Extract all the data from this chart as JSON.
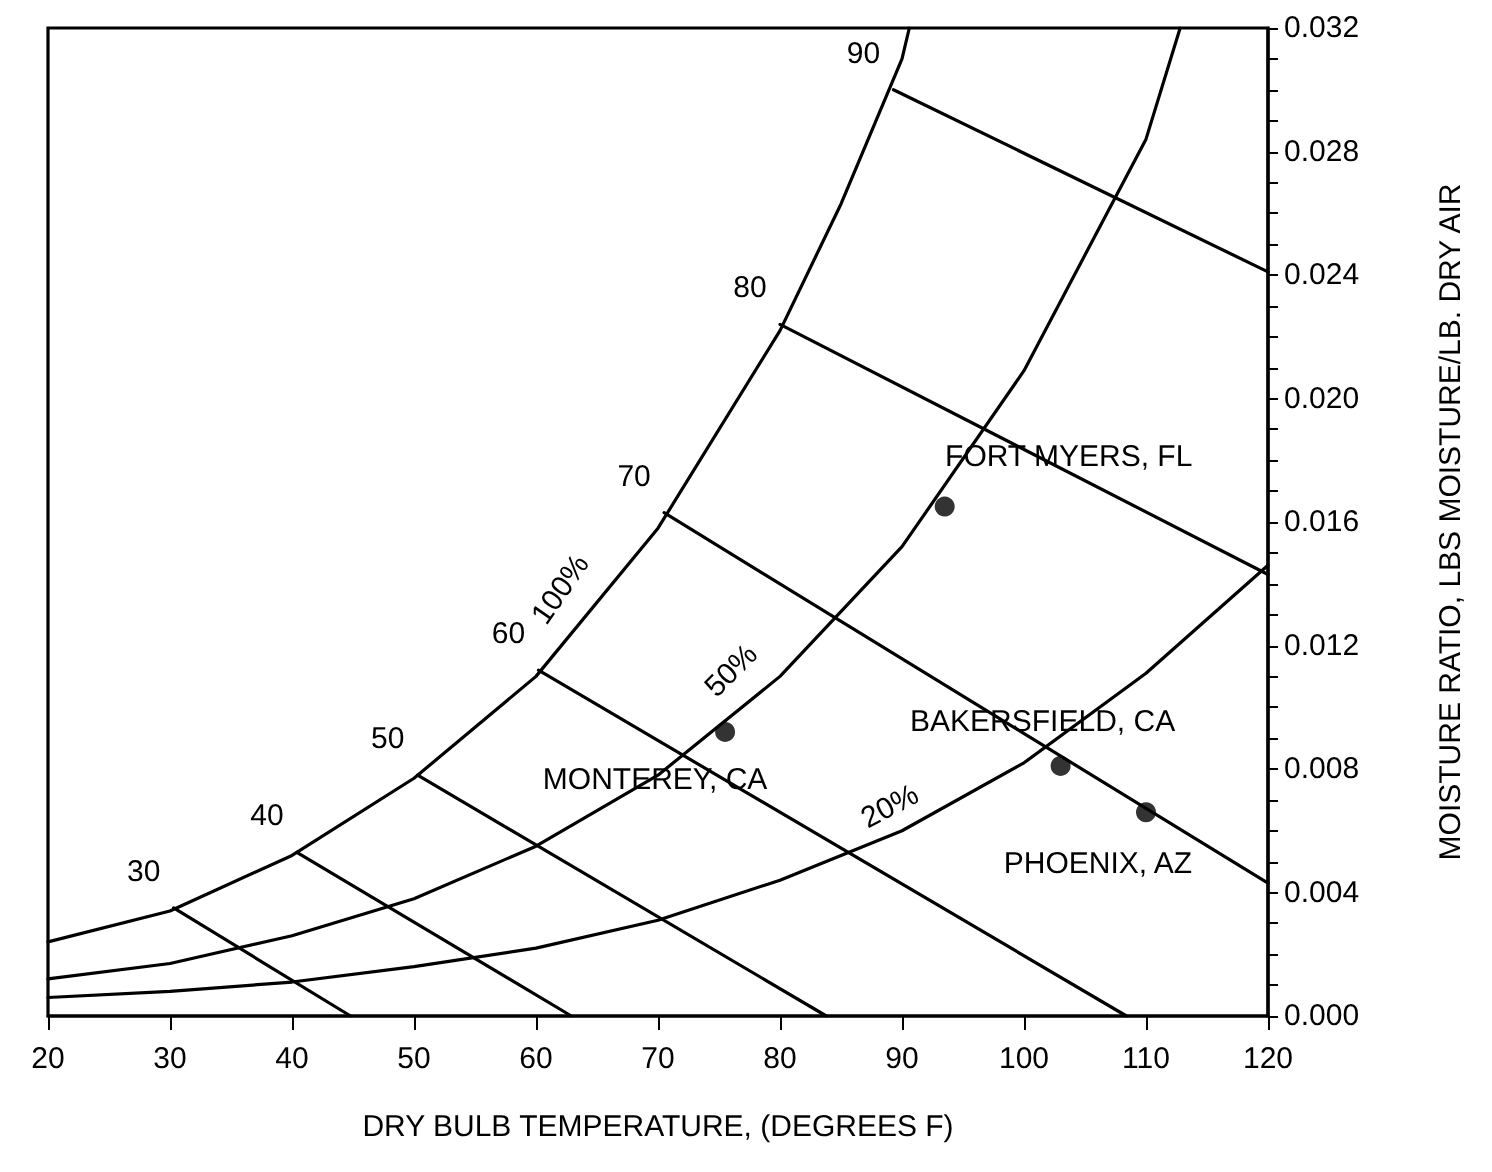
{
  "chart_data": {
    "type": "line",
    "xlabel": "DRY BULB TEMPERATURE, (DEGREES F)",
    "ylabel": "MOISTURE RATIO, LBS MOISTURE/LB. DRY AIR",
    "xlim": [
      20,
      120
    ],
    "xticks": [
      20,
      30,
      40,
      50,
      60,
      70,
      80,
      90,
      100,
      110,
      120
    ],
    "ylim": [
      0,
      0.032
    ],
    "yticks": [
      {
        "value": 0,
        "label": "0.000"
      },
      {
        "value": 0.001,
        "label": null
      },
      {
        "value": 0.002,
        "label": null
      },
      {
        "value": 0.003,
        "label": null
      },
      {
        "value": 0.004,
        "label": "0.004"
      },
      {
        "value": 0.005,
        "label": null
      },
      {
        "value": 0.006,
        "label": null
      },
      {
        "value": 0.007,
        "label": null
      },
      {
        "value": 0.008,
        "label": "0.008"
      },
      {
        "value": 0.009,
        "label": null
      },
      {
        "value": 0.01,
        "label": null
      },
      {
        "value": 0.011,
        "label": null
      },
      {
        "value": 0.012,
        "label": "0.012"
      },
      {
        "value": 0.013,
        "label": null
      },
      {
        "value": 0.014,
        "label": null
      },
      {
        "value": 0.015,
        "label": null
      },
      {
        "value": 0.016,
        "label": "0.016"
      },
      {
        "value": 0.017,
        "label": null
      },
      {
        "value": 0.018,
        "label": null
      },
      {
        "value": 0.019,
        "label": null
      },
      {
        "value": 0.02,
        "label": "0.020"
      },
      {
        "value": 0.021,
        "label": null
      },
      {
        "value": 0.022,
        "label": null
      },
      {
        "value": 0.023,
        "label": null
      },
      {
        "value": 0.024,
        "label": "0.024"
      },
      {
        "value": 0.025,
        "label": null
      },
      {
        "value": 0.026,
        "label": null
      },
      {
        "value": 0.027,
        "label": null
      },
      {
        "value": 0.028,
        "label": "0.028"
      },
      {
        "value": 0.029,
        "label": null
      },
      {
        "value": 0.03,
        "label": null
      },
      {
        "value": 0.031,
        "label": null
      },
      {
        "value": 0.032,
        "label": "0.032"
      }
    ],
    "grid": false,
    "marker": "none",
    "line_style": "solid",
    "series": [
      {
        "color": "#000000",
        "x": [
          20,
          30,
          40,
          50,
          60,
          70,
          80,
          85,
          90,
          90.6
        ],
        "values": [
          0.0024,
          0.0034,
          0.0052,
          0.0077,
          0.011,
          0.0158,
          0.0222,
          0.0263,
          0.031,
          0.032
        ]
      },
      {
        "color": "#000000",
        "x": [
          20,
          30,
          40,
          50,
          60,
          70,
          80,
          90,
          100,
          110,
          112.8
        ],
        "values": [
          0.0012,
          0.0017,
          0.0026,
          0.0038,
          0.0055,
          0.0078,
          0.011,
          0.0152,
          0.0209,
          0.0284,
          0.032
        ]
      },
      {
        "color": "#000000",
        "x": [
          20,
          30,
          40,
          50,
          60,
          70,
          80,
          90,
          100,
          110,
          120
        ],
        "values": [
          0.0006,
          0.0008,
          0.0011,
          0.0016,
          0.0022,
          0.0031,
          0.0044,
          0.006,
          0.0082,
          0.0111,
          0.0146
        ]
      },
      {
        "color": "#000000",
        "x": [
          30.3,
          44.8
        ],
        "values": [
          0.0035,
          0
        ]
      },
      {
        "color": "#000000",
        "x": [
          40.4,
          62.9
        ],
        "values": [
          0.0053,
          0
        ]
      },
      {
        "color": "#000000",
        "x": [
          50.3,
          83.8
        ],
        "values": [
          0.0078,
          0
        ]
      },
      {
        "color": "#000000",
        "x": [
          60.2,
          108.4
        ],
        "values": [
          0.0112,
          0
        ]
      },
      {
        "color": "#000000",
        "x": [
          70.5,
          120
        ],
        "values": [
          0.0163,
          0.0043
        ]
      },
      {
        "color": "#000000",
        "x": [
          80,
          120
        ],
        "values": [
          0.0224,
          0.0143
        ]
      },
      {
        "color": "#000000",
        "x": [
          89.3,
          120
        ],
        "values": [
          0.03,
          0.0241
        ]
      },
      {
        "type": "scatter",
        "marker": "circle",
        "color": "#000000",
        "x": [
          75.5,
          93.5,
          103,
          110
        ],
        "values": [
          0.0092,
          0.0165,
          0.0081,
          0.0066
        ]
      }
    ],
    "annotations": [
      {
        "text": "100%",
        "x": 64,
        "y": 0.0129
      },
      {
        "text": "50%",
        "x": 78,
        "y": 0.0104
      },
      {
        "text": "20%",
        "x": 90,
        "y": 0.006
      },
      {
        "text": "30",
        "x": 30.3,
        "y": 0.0035
      },
      {
        "text": "40",
        "x": 40.4,
        "y": 0.0053
      },
      {
        "text": "50",
        "x": 50.3,
        "y": 0.0078
      },
      {
        "text": "60",
        "x": 60.2,
        "y": 0.0112
      },
      {
        "text": "70",
        "x": 70.5,
        "y": 0.0163
      },
      {
        "text": "80",
        "x": 80,
        "y": 0.0224
      },
      {
        "text": "90",
        "x": 89.3,
        "y": 0.03
      },
      {
        "text": "MONTEREY, CA",
        "x": 75.5,
        "y": 0.0092
      },
      {
        "text": "FORT MYERS, FL",
        "x": 93.5,
        "y": 0.0165
      },
      {
        "text": "BAKERSFIELD, CA",
        "x": 103,
        "y": 0.0081
      },
      {
        "text": "PHOENIX, AZ",
        "x": 110,
        "y": 0.0066
      }
    ]
  }
}
